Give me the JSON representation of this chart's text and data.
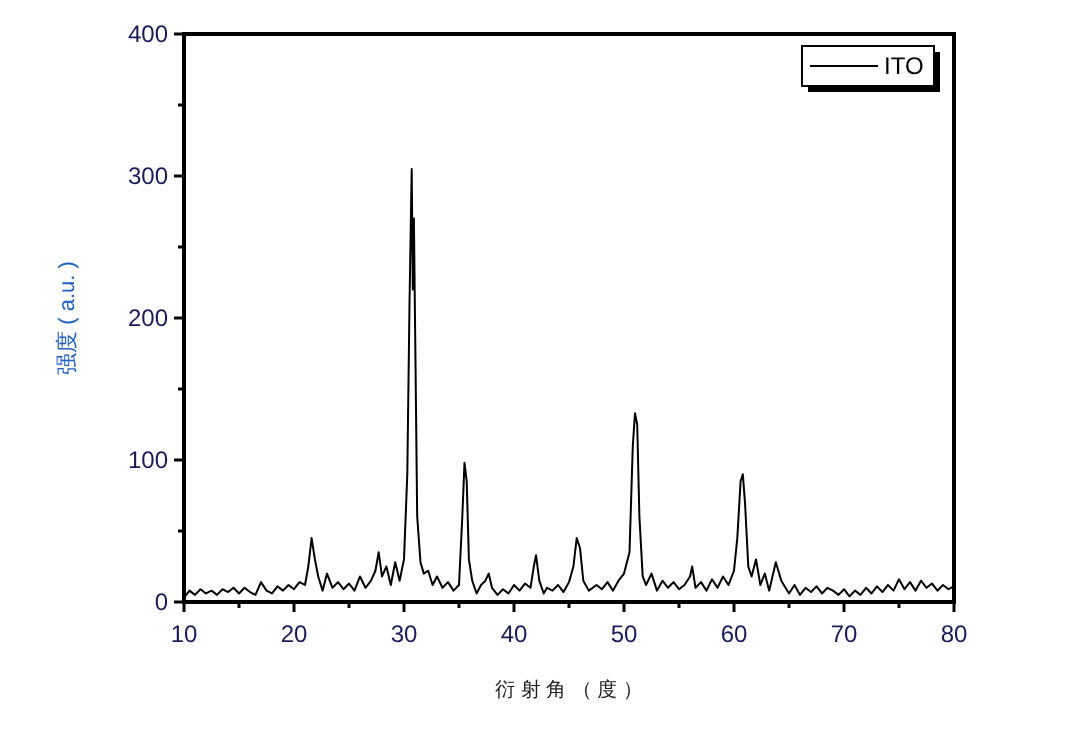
{
  "chart_data": {
    "type": "line",
    "xlabel": "衍 射 角 （ 度 ）",
    "ylabel": "强度 ( a.u. )",
    "xlim": [
      10,
      80
    ],
    "xticks": [
      10,
      20,
      30,
      40,
      50,
      60,
      70,
      80
    ],
    "ylim": [
      0,
      400
    ],
    "yticks": [
      0,
      100,
      200,
      300,
      400
    ],
    "grid": false,
    "legend": "top right",
    "series": [
      {
        "name": "ITO",
        "color": "#000000",
        "x": [
          10,
          10.5,
          11,
          11.5,
          12,
          12.5,
          13,
          13.5,
          14,
          14.5,
          15,
          15.5,
          16,
          16.5,
          17,
          17.5,
          18,
          18.5,
          19,
          19.5,
          20,
          20.5,
          21,
          21.3,
          21.6,
          21.9,
          22.2,
          22.6,
          23,
          23.5,
          24,
          24.5,
          25,
          25.5,
          26,
          26.5,
          27,
          27.4,
          27.7,
          28,
          28.4,
          28.8,
          29.2,
          29.6,
          30,
          30.3,
          30.5,
          30.7,
          30.8,
          30.9,
          31.0,
          31.2,
          31.5,
          31.8,
          32.2,
          32.6,
          33,
          33.5,
          34,
          34.5,
          35,
          35.3,
          35.5,
          35.7,
          35.9,
          36.2,
          36.6,
          37,
          37.4,
          37.7,
          38,
          38.5,
          39,
          39.5,
          40,
          40.5,
          41,
          41.5,
          41.8,
          42.0,
          42.3,
          42.7,
          43,
          43.5,
          44,
          44.5,
          45,
          45.4,
          45.7,
          46,
          46.3,
          46.8,
          47.5,
          48,
          48.5,
          49,
          49.5,
          50,
          50.5,
          50.8,
          51.0,
          51.2,
          51.4,
          51.7,
          52,
          52.5,
          53,
          53.5,
          54,
          54.5,
          55,
          55.5,
          56,
          56.2,
          56.5,
          57,
          57.5,
          58,
          58.5,
          59,
          59.5,
          60,
          60.3,
          60.6,
          60.8,
          61.0,
          61.3,
          61.6,
          62,
          62.4,
          62.8,
          63.2,
          63.8,
          64.3,
          65,
          65.5,
          66,
          66.5,
          67,
          67.5,
          68,
          68.5,
          69,
          69.5,
          70,
          70.5,
          71,
          71.5,
          72,
          72.5,
          73,
          73.5,
          74,
          74.5,
          75,
          75.5,
          76,
          76.5,
          77,
          77.5,
          78,
          78.5,
          79,
          79.5,
          80
        ],
        "values": [
          3,
          8,
          5,
          9,
          6,
          8,
          5,
          9,
          7,
          10,
          6,
          10,
          7,
          5,
          14,
          8,
          6,
          11,
          8,
          12,
          9,
          14,
          12,
          25,
          45,
          30,
          18,
          8,
          20,
          10,
          14,
          9,
          13,
          8,
          18,
          10,
          15,
          22,
          35,
          18,
          25,
          12,
          28,
          15,
          30,
          90,
          210,
          305,
          220,
          270,
          200,
          60,
          28,
          20,
          22,
          12,
          18,
          10,
          14,
          8,
          12,
          60,
          98,
          85,
          30,
          15,
          6,
          12,
          15,
          20,
          10,
          5,
          9,
          6,
          12,
          8,
          13,
          10,
          25,
          33,
          15,
          6,
          10,
          8,
          12,
          7,
          14,
          25,
          45,
          38,
          15,
          8,
          12,
          9,
          14,
          8,
          15,
          20,
          35,
          110,
          133,
          125,
          60,
          18,
          12,
          20,
          8,
          15,
          10,
          14,
          9,
          12,
          18,
          25,
          10,
          14,
          8,
          16,
          10,
          18,
          12,
          22,
          45,
          85,
          90,
          70,
          25,
          18,
          30,
          12,
          20,
          8,
          28,
          15,
          6,
          12,
          5,
          10,
          7,
          11,
          6,
          10,
          8,
          5,
          9,
          4,
          8,
          5,
          10,
          6,
          11,
          7,
          12,
          8,
          16,
          9,
          14,
          8,
          15,
          10,
          13,
          8,
          12,
          9,
          11
        ]
      }
    ]
  }
}
